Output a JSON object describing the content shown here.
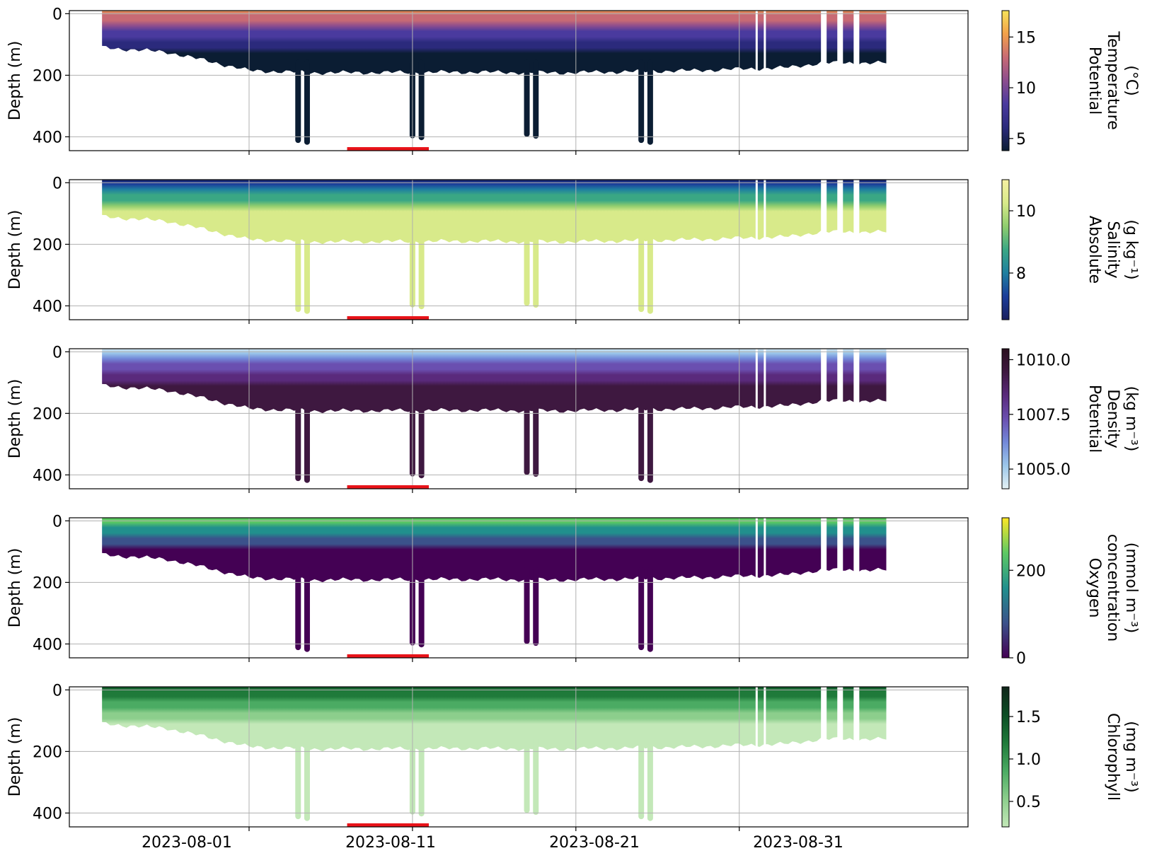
{
  "figure": {
    "x_tick_labels": [
      "2023-08-01",
      "2023-08-11",
      "2023-08-21",
      "2023-08-31"
    ]
  },
  "chart_data": [
    {
      "type": "heatmap",
      "ylabel": "Depth (m)",
      "colorbar_label": [
        "Potential",
        "Temperature",
        "(°C)"
      ],
      "colorbar_ticks": [
        "5",
        "10",
        "15"
      ],
      "colorbar_tick_values": [
        5,
        10,
        15
      ],
      "colorbar_range": [
        3.8,
        17.6
      ],
      "colormap": [
        "#0b1d33",
        "#2b2a7c",
        "#4a3a9e",
        "#8c4d8e",
        "#c86a74",
        "#f2a04a",
        "#f7e35a"
      ],
      "surface_range_C": [
        13,
        17
      ],
      "deep_value_C": 5.5
    },
    {
      "type": "heatmap",
      "ylabel": "Depth (m)",
      "colorbar_label": [
        "Absolute",
        "Salinity",
        "(g kg⁻¹)"
      ],
      "colorbar_ticks": [
        "8",
        "10"
      ],
      "colorbar_tick_values": [
        8,
        10
      ],
      "colorbar_range": [
        6.5,
        11.0
      ],
      "colormap": [
        "#1a1f5e",
        "#1b3d9a",
        "#1f7fa0",
        "#3aa784",
        "#8fcd6e",
        "#d8ea8a",
        "#f6f0a2"
      ],
      "surface_value": 7.0,
      "deep_value": 11.0
    },
    {
      "type": "heatmap",
      "ylabel": "Depth (m)",
      "colorbar_label": [
        "Potential",
        "Density",
        "(kg m⁻³)"
      ],
      "colorbar_ticks": [
        "1005.0",
        "1007.5",
        "1010.0"
      ],
      "colorbar_tick_values": [
        1005.0,
        1007.5,
        1010.0
      ],
      "colorbar_range": [
        1004.1,
        1010.5
      ],
      "colormap": [
        "#e4f1f4",
        "#9cc7ea",
        "#7389d9",
        "#6a4fb0",
        "#5a2a7c",
        "#3e1840",
        "#2a0f1e"
      ],
      "surface_value": 1005.0,
      "deep_value": 1010.3
    },
    {
      "type": "heatmap",
      "ylabel": "Depth (m)",
      "colorbar_label": [
        "Oxygen",
        "concentration",
        "(mmol m⁻³)"
      ],
      "colorbar_ticks": [
        "0",
        "200"
      ],
      "colorbar_tick_values": [
        0,
        200
      ],
      "colorbar_range": [
        0,
        320
      ],
      "colormap": [
        "#440154",
        "#3b528b",
        "#21908d",
        "#5dc963",
        "#fde725"
      ],
      "surface_value": 300,
      "deep_value": 5
    },
    {
      "type": "heatmap",
      "ylabel": "Depth (m)",
      "colorbar_label": [
        "Chlorophyll",
        "(mg m⁻³)"
      ],
      "colorbar_ticks": [
        "0.5",
        "1.0",
        "1.5"
      ],
      "colorbar_tick_values": [
        0.5,
        1.0,
        1.5
      ],
      "colorbar_range": [
        0.2,
        1.85
      ],
      "colormap": [
        "#c3e8b8",
        "#8cce8c",
        "#4bab63",
        "#1f7a3a",
        "#0b4d24",
        "#10251a"
      ],
      "surface_value": 1.6,
      "deep_value": 0.3
    }
  ],
  "axes": {
    "y_ticks": [
      "0",
      "200",
      "400"
    ],
    "y_tick_values": [
      0,
      200,
      400
    ],
    "y_range": [
      -10,
      445
    ],
    "x_range": [
      "2023-07-21",
      "2023-09-14"
    ],
    "x_tick_dates": [
      "2023-08-01",
      "2023-08-11",
      "2023-08-21",
      "2023-08-31"
    ],
    "grid": true,
    "data_start": "2023-07-23",
    "data_end": "2023-09-09",
    "profile_max_depth_m": [
      [
        "2023-07-23",
        110
      ],
      [
        "2023-07-27",
        125
      ],
      [
        "2023-07-30",
        160
      ],
      [
        "2023-08-01",
        185
      ],
      [
        "2023-08-05",
        192
      ],
      [
        "2023-08-15",
        190
      ],
      [
        "2023-08-20",
        192
      ],
      [
        "2023-08-28",
        185
      ],
      [
        "2023-09-03",
        175
      ],
      [
        "2023-09-05",
        160
      ]
    ],
    "deep_dives_m": [
      [
        "2023-08-04",
        420
      ],
      [
        "2023-08-11",
        405
      ],
      [
        "2023-08-18",
        400
      ],
      [
        "2023-08-25",
        420
      ]
    ],
    "highlight_period": [
      "2023-08-07",
      "2023-08-12"
    ],
    "highlight_color": "#e8141a"
  }
}
